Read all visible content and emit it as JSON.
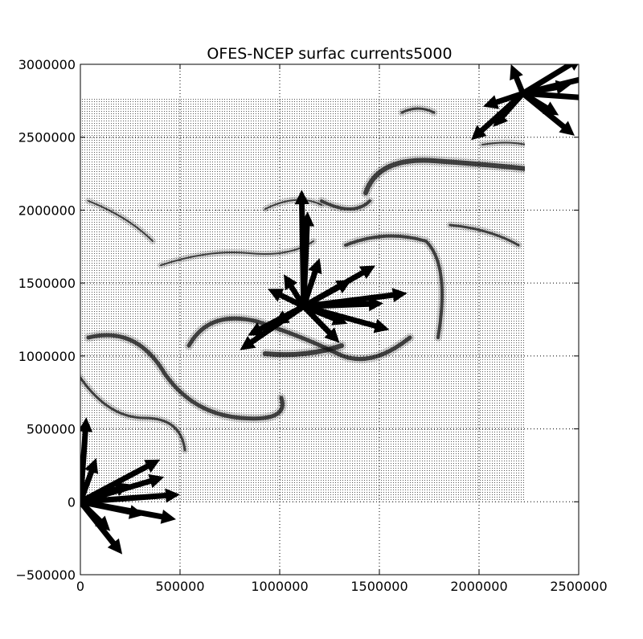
{
  "chart_data": {
    "type": "quiver",
    "title": "OFES-NCEP surfac currents5000",
    "xlabel": "",
    "ylabel": "",
    "xlim": [
      0,
      2500000
    ],
    "ylim": [
      -500000,
      3000000
    ],
    "x_ticks": [
      0,
      500000,
      1000000,
      1500000,
      2000000,
      2500000
    ],
    "x_tick_labels": [
      "0",
      "500000",
      "1000000",
      "1500000",
      "2000000",
      "2500000"
    ],
    "y_ticks": [
      -500000,
      0,
      500000,
      1000000,
      1500000,
      2000000,
      2500000,
      3000000
    ],
    "y_tick_labels": [
      "−500000",
      "0",
      "500000",
      "1000000",
      "1500000",
      "2000000",
      "2500000",
      "3000000"
    ],
    "grid": true,
    "field_extent": {
      "x": [
        0,
        2230000
      ],
      "y": [
        0,
        2770000
      ]
    },
    "arrow_color": "#000000",
    "arrow_clusters": [
      {
        "name": "center",
        "x": 1120000,
        "y": 1340000,
        "vectors": [
          [
            -10000,
            800000
          ],
          [
            20000,
            650000
          ],
          [
            240000,
            180000
          ],
          [
            520000,
            90000
          ],
          [
            430000,
            -160000
          ],
          [
            -320000,
            -300000
          ],
          [
            -150000,
            -120000
          ],
          [
            180000,
            -250000
          ],
          [
            360000,
            280000
          ],
          [
            -180000,
            120000
          ],
          [
            80000,
            330000
          ],
          [
            400000,
            20000
          ],
          [
            -280000,
            -200000
          ],
          [
            -100000,
            220000
          ],
          [
            220000,
            -120000
          ]
        ]
      },
      {
        "name": "origin",
        "x": 0,
        "y": 0,
        "vectors": [
          [
            30000,
            580000
          ],
          [
            420000,
            170000
          ],
          [
            500000,
            50000
          ],
          [
            480000,
            -120000
          ],
          [
            210000,
            -360000
          ],
          [
            400000,
            290000
          ],
          [
            320000,
            -90000
          ],
          [
            80000,
            300000
          ],
          [
            150000,
            -200000
          ],
          [
            250000,
            120000
          ],
          [
            -20000,
            220000
          ]
        ]
      },
      {
        "name": "top-right",
        "x": 2220000,
        "y": 2800000,
        "vectors": [
          [
            -260000,
            -320000
          ],
          [
            -150000,
            -230000
          ],
          [
            260000,
            -290000
          ],
          [
            360000,
            120000
          ],
          [
            420000,
            -40000
          ],
          [
            300000,
            250000
          ],
          [
            -60000,
            200000
          ],
          [
            180000,
            -150000
          ],
          [
            -200000,
            -90000
          ],
          [
            240000,
            60000
          ]
        ]
      }
    ]
  }
}
